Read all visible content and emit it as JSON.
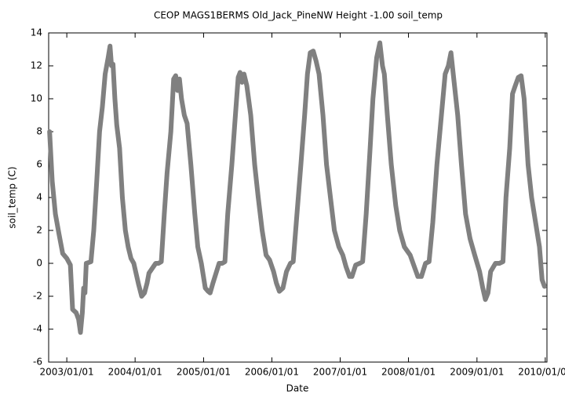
{
  "chart_data": {
    "type": "line",
    "title": "CEOP MAGS1BERMS Old_Jack_PineNW Height -1.00 soil_temp",
    "xlabel": "Date",
    "ylabel": "soil_temp (C)",
    "xlim": [
      "2002-09-26",
      "2010-01-10"
    ],
    "xticks": [
      {
        "value": "2003-01-01",
        "label": "2003/01/01"
      },
      {
        "value": "2004-01-01",
        "label": "2004/01/01"
      },
      {
        "value": "2005-01-01",
        "label": "2005/01/01"
      },
      {
        "value": "2006-01-01",
        "label": "2006/01/01"
      },
      {
        "value": "2007-01-01",
        "label": "2007/01/01"
      },
      {
        "value": "2008-01-01",
        "label": "2008/01/01"
      },
      {
        "value": "2009-01-01",
        "label": "2009/01/01"
      },
      {
        "value": "2010-01-01",
        "label": "2010/01/01"
      }
    ],
    "ylim": [
      -6,
      14
    ],
    "yticks": [
      -6,
      -4,
      -2,
      0,
      2,
      4,
      6,
      8,
      10,
      12,
      14
    ],
    "grid": false,
    "x": [
      "2002-10-01",
      "2002-10-15",
      "2002-11-01",
      "2002-11-20",
      "2002-12-10",
      "2003-01-01",
      "2003-01-20",
      "2003-02-01",
      "2003-02-20",
      "2003-03-05",
      "2003-03-15",
      "2003-03-25",
      "2003-04-01",
      "2003-04-08",
      "2003-04-15",
      "2003-05-10",
      "2003-05-25",
      "2003-06-10",
      "2003-06-25",
      "2003-07-10",
      "2003-07-25",
      "2003-08-10",
      "2003-08-20",
      "2003-08-28",
      "2003-09-05",
      "2003-09-15",
      "2003-09-25",
      "2003-10-10",
      "2003-10-25",
      "2003-11-10",
      "2003-11-25",
      "2003-12-10",
      "2003-12-25",
      "2004-01-10",
      "2004-01-20",
      "2004-02-05",
      "2004-02-20",
      "2004-03-05",
      "2004-03-15",
      "2004-04-20",
      "2004-05-05",
      "2004-05-20",
      "2004-06-05",
      "2004-06-20",
      "2004-07-10",
      "2004-07-25",
      "2004-08-05",
      "2004-08-15",
      "2004-08-25",
      "2004-09-05",
      "2004-09-20",
      "2004-10-05",
      "2004-10-25",
      "2004-11-15",
      "2004-12-01",
      "2004-12-20",
      "2005-01-10",
      "2005-01-25",
      "2005-02-05",
      "2005-02-20",
      "2005-03-25",
      "2005-04-10",
      "2005-04-25",
      "2005-05-10",
      "2005-06-01",
      "2005-06-20",
      "2005-07-05",
      "2005-07-15",
      "2005-07-25",
      "2005-08-05",
      "2005-08-20",
      "2005-09-10",
      "2005-10-01",
      "2005-10-20",
      "2005-11-10",
      "2005-12-01",
      "2005-12-20",
      "2006-01-10",
      "2006-01-25",
      "2006-02-10",
      "2006-03-01",
      "2006-03-20",
      "2006-04-10",
      "2006-04-25",
      "2006-05-15",
      "2006-06-05",
      "2006-06-25",
      "2006-07-10",
      "2006-07-25",
      "2006-08-10",
      "2006-08-25",
      "2006-09-10",
      "2006-10-01",
      "2006-10-20",
      "2006-11-10",
      "2006-12-01",
      "2006-12-25",
      "2007-01-15",
      "2007-02-01",
      "2007-02-20",
      "2007-03-05",
      "2007-03-25",
      "2007-04-15",
      "2007-05-01",
      "2007-05-20",
      "2007-06-10",
      "2007-06-25",
      "2007-07-15",
      "2007-08-01",
      "2007-08-15",
      "2007-08-25",
      "2007-09-10",
      "2007-10-01",
      "2007-10-25",
      "2007-11-15",
      "2007-12-10",
      "2008-01-10",
      "2008-02-01",
      "2008-02-20",
      "2008-03-10",
      "2008-04-01",
      "2008-04-20",
      "2008-05-10",
      "2008-06-01",
      "2008-06-25",
      "2008-07-15",
      "2008-08-01",
      "2008-08-15",
      "2008-09-01",
      "2008-09-20",
      "2008-10-10",
      "2008-11-01",
      "2008-11-25",
      "2008-12-20",
      "2009-01-15",
      "2009-02-01",
      "2009-02-15",
      "2009-03-01",
      "2009-03-15",
      "2009-04-10",
      "2009-05-01",
      "2009-05-20",
      "2009-06-05",
      "2009-06-25",
      "2009-07-10",
      "2009-07-25",
      "2009-08-10",
      "2009-08-25",
      "2009-09-10",
      "2009-10-01",
      "2009-10-20",
      "2009-11-10",
      "2009-12-01",
      "2009-12-15",
      "2009-12-28"
    ],
    "series": [
      {
        "name": "soil_temp",
        "color": "#808080",
        "values": [
          8.0,
          5.0,
          3.0,
          1.8,
          0.6,
          0.3,
          -0.1,
          -2.8,
          -3.0,
          -3.4,
          -4.2,
          -3.0,
          -1.5,
          -1.8,
          0.0,
          0.1,
          2.0,
          5.0,
          8.0,
          9.5,
          11.5,
          12.5,
          13.2,
          12.0,
          12.1,
          10.0,
          8.4,
          7.0,
          4.0,
          2.0,
          1.0,
          0.3,
          0.0,
          -0.8,
          -1.3,
          -2.0,
          -1.8,
          -1.2,
          -0.6,
          0.0,
          0.0,
          0.1,
          3.0,
          5.5,
          8.0,
          11.2,
          11.4,
          10.5,
          11.2,
          10.0,
          9.0,
          8.5,
          6.0,
          3.0,
          1.0,
          0.0,
          -1.5,
          -1.7,
          -1.8,
          -1.2,
          0.0,
          0.0,
          0.1,
          3.0,
          6.0,
          9.0,
          11.3,
          11.6,
          11.0,
          11.5,
          10.8,
          9.0,
          6.0,
          4.0,
          2.0,
          0.5,
          0.2,
          -0.5,
          -1.2,
          -1.7,
          -1.5,
          -0.5,
          0.0,
          0.1,
          3.0,
          6.0,
          9.0,
          11.5,
          12.8,
          12.9,
          12.3,
          11.5,
          9.0,
          6.0,
          4.0,
          2.0,
          1.0,
          0.5,
          -0.2,
          -0.8,
          -0.8,
          -0.1,
          0.0,
          0.1,
          3.0,
          7.0,
          10.0,
          12.5,
          13.4,
          12.0,
          11.5,
          9.0,
          6.0,
          3.5,
          2.0,
          1.0,
          0.5,
          -0.2,
          -0.8,
          -0.8,
          0.0,
          0.1,
          2.5,
          6.0,
          9.0,
          11.5,
          12.0,
          12.8,
          11.0,
          9.0,
          6.0,
          3.0,
          1.5,
          0.5,
          -0.5,
          -1.5,
          -2.2,
          -1.8,
          -0.5,
          0.0,
          0.0,
          0.1,
          4.0,
          7.0,
          10.3,
          10.8,
          11.3,
          11.4,
          10.0,
          6.0,
          4.0,
          2.5,
          1.0,
          -1.0,
          -1.4
        ]
      }
    ]
  }
}
